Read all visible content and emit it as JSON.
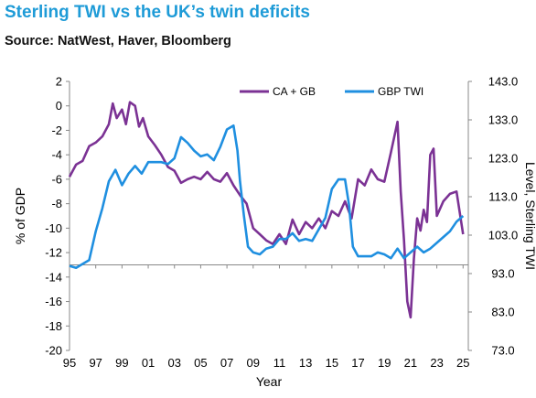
{
  "title": "Sterling TWI vs the UK’s twin deficits",
  "subtitle": "Source: NatWest, Haver, Bloomberg",
  "colors": {
    "title": "#1e9bd7",
    "ca_gb": "#7b3294",
    "gbp_twi": "#1f8fe0"
  },
  "chart_data": {
    "type": "line",
    "title": "Sterling TWI vs the UK’s twin deficits",
    "xlabel": "Year",
    "ylabel_left": "% of GDP",
    "ylabel_right": "Level, Sterling TWI",
    "xlim": [
      1995,
      2025.4
    ],
    "ylim_left": [
      -20,
      2
    ],
    "ylim_right": [
      73.0,
      143.0
    ],
    "x_ticks": [
      "95",
      "97",
      "99",
      "01",
      "03",
      "05",
      "07",
      "09",
      "11",
      "13",
      "15",
      "17",
      "19",
      "21",
      "23",
      "25"
    ],
    "y_left_ticks": [
      "2",
      "0",
      "-2",
      "-4",
      "-6",
      "-8",
      "-10",
      "-12",
      "-14",
      "-16",
      "-18",
      "-20"
    ],
    "y_right_ticks": [
      "143.0",
      "133.0",
      "123.0",
      "113.0",
      "103.0",
      "93.0",
      "83.0",
      "73.0"
    ],
    "legend_position": "top-right",
    "series": [
      {
        "name": "CA + GB",
        "axis": "left",
        "x": [
          1995.0,
          1995.5,
          1996.0,
          1996.5,
          1997.0,
          1997.5,
          1998.0,
          1998.3,
          1998.6,
          1999.0,
          1999.3,
          1999.6,
          2000.0,
          2000.3,
          2000.6,
          2001.0,
          2001.5,
          2002.0,
          2002.5,
          2003.0,
          2003.5,
          2004.0,
          2004.5,
          2005.0,
          2005.5,
          2006.0,
          2006.5,
          2007.0,
          2007.5,
          2008.0,
          2008.5,
          2009.0,
          2009.5,
          2010.0,
          2010.5,
          2011.0,
          2011.5,
          2012.0,
          2012.5,
          2013.0,
          2013.5,
          2014.0,
          2014.5,
          2015.0,
          2015.5,
          2016.0,
          2016.5,
          2017.0,
          2017.5,
          2018.0,
          2018.5,
          2019.0,
          2019.5,
          2020.0,
          2020.25,
          2020.5,
          2020.75,
          2021.0,
          2021.25,
          2021.5,
          2021.75,
          2022.0,
          2022.25,
          2022.5,
          2022.75,
          2023.0,
          2023.5,
          2024.0,
          2024.5,
          2025.0
        ],
        "y": [
          -5.8,
          -4.8,
          -4.5,
          -3.3,
          -3.0,
          -2.5,
          -1.5,
          0.2,
          -1.0,
          -0.3,
          -1.5,
          0.3,
          0.0,
          -1.7,
          -1.0,
          -2.5,
          -3.2,
          -4.0,
          -5.0,
          -5.3,
          -6.3,
          -6.0,
          -5.8,
          -6.0,
          -5.4,
          -6.0,
          -6.2,
          -5.5,
          -6.5,
          -7.3,
          -8.0,
          -10.0,
          -10.5,
          -11.0,
          -11.3,
          -10.5,
          -11.3,
          -9.3,
          -10.5,
          -9.5,
          -10.0,
          -9.2,
          -10.0,
          -8.6,
          -9.0,
          -7.8,
          -9.2,
          -6.0,
          -6.5,
          -5.2,
          -6.0,
          -6.2,
          -3.8,
          -1.3,
          -7.0,
          -11.0,
          -16.0,
          -17.3,
          -12.5,
          -9.2,
          -10.2,
          -8.5,
          -9.5,
          -4.0,
          -3.5,
          -9.0,
          -7.8,
          -7.2,
          -7.0,
          -10.5
        ]
      },
      {
        "name": "GBP TWI",
        "axis": "right",
        "x": [
          1995.0,
          1995.5,
          1996.0,
          1996.5,
          1997.0,
          1997.5,
          1998.0,
          1998.5,
          1999.0,
          1999.5,
          2000.0,
          2000.5,
          2001.0,
          2001.5,
          2002.0,
          2002.5,
          2003.0,
          2003.5,
          2004.0,
          2004.5,
          2005.0,
          2005.5,
          2006.0,
          2006.5,
          2007.0,
          2007.5,
          2007.8,
          2008.0,
          2008.3,
          2008.6,
          2009.0,
          2009.5,
          2010.0,
          2010.5,
          2011.0,
          2011.5,
          2012.0,
          2012.5,
          2013.0,
          2013.5,
          2014.0,
          2014.5,
          2015.0,
          2015.5,
          2016.0,
          2016.3,
          2016.6,
          2017.0,
          2017.5,
          2018.0,
          2018.5,
          2019.0,
          2019.5,
          2020.0,
          2020.5,
          2021.0,
          2021.5,
          2022.0,
          2022.5,
          2023.0,
          2023.5,
          2024.0,
          2024.5,
          2025.0
        ],
        "y": [
          95.0,
          94.5,
          95.5,
          96.5,
          104.0,
          110.0,
          117.0,
          120.0,
          116.0,
          119.0,
          121.0,
          119.0,
          122.0,
          122.0,
          122.0,
          121.5,
          123.0,
          128.5,
          127.0,
          125.0,
          123.5,
          124.0,
          122.5,
          126.0,
          130.5,
          131.5,
          125.0,
          117.0,
          108.0,
          100.0,
          98.5,
          98.0,
          99.5,
          100.0,
          102.0,
          102.0,
          103.5,
          101.5,
          102.0,
          101.5,
          104.5,
          107.5,
          115.0,
          117.5,
          117.5,
          111.0,
          100.0,
          97.5,
          97.5,
          97.5,
          98.5,
          98.0,
          97.0,
          99.5,
          97.0,
          98.5,
          100.0,
          98.5,
          99.5,
          101.0,
          102.5,
          104.0,
          106.5,
          108.0
        ]
      }
    ]
  }
}
